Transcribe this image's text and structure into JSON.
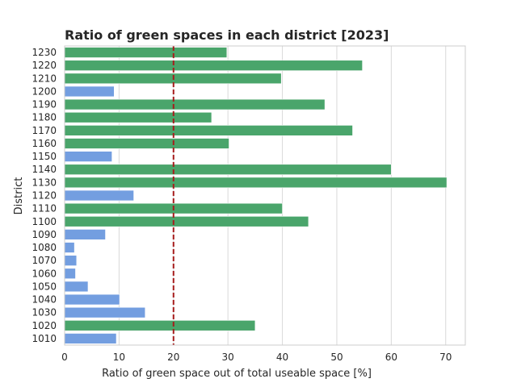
{
  "chart_data": {
    "type": "bar",
    "orientation": "horizontal",
    "title": "Ratio of green spaces in each district [2023]",
    "xlabel": "Ratio of green space out of total useable space [%]",
    "ylabel": "District",
    "xlim": [
      0,
      73.6
    ],
    "xticks": [
      0,
      10,
      20,
      30,
      40,
      50,
      60,
      70
    ],
    "categories": [
      "1230",
      "1220",
      "1210",
      "1200",
      "1190",
      "1180",
      "1170",
      "1160",
      "1150",
      "1140",
      "1130",
      "1120",
      "1110",
      "1100",
      "1090",
      "1080",
      "1070",
      "1060",
      "1050",
      "1040",
      "1030",
      "1020",
      "1010"
    ],
    "values": [
      29.8,
      54.7,
      39.8,
      9.1,
      47.8,
      27.0,
      52.9,
      30.2,
      8.7,
      60.0,
      70.2,
      12.7,
      40.0,
      44.8,
      7.5,
      1.8,
      2.2,
      2.0,
      4.3,
      10.1,
      14.8,
      35.0,
      9.5
    ],
    "threshold": 20,
    "grid": true,
    "colors": {
      "above_threshold": "#4aa56b",
      "below_threshold": "#739ee0",
      "threshold_line": "#a61d1d",
      "grid": "#d9d9d9",
      "text": "#262626"
    }
  }
}
